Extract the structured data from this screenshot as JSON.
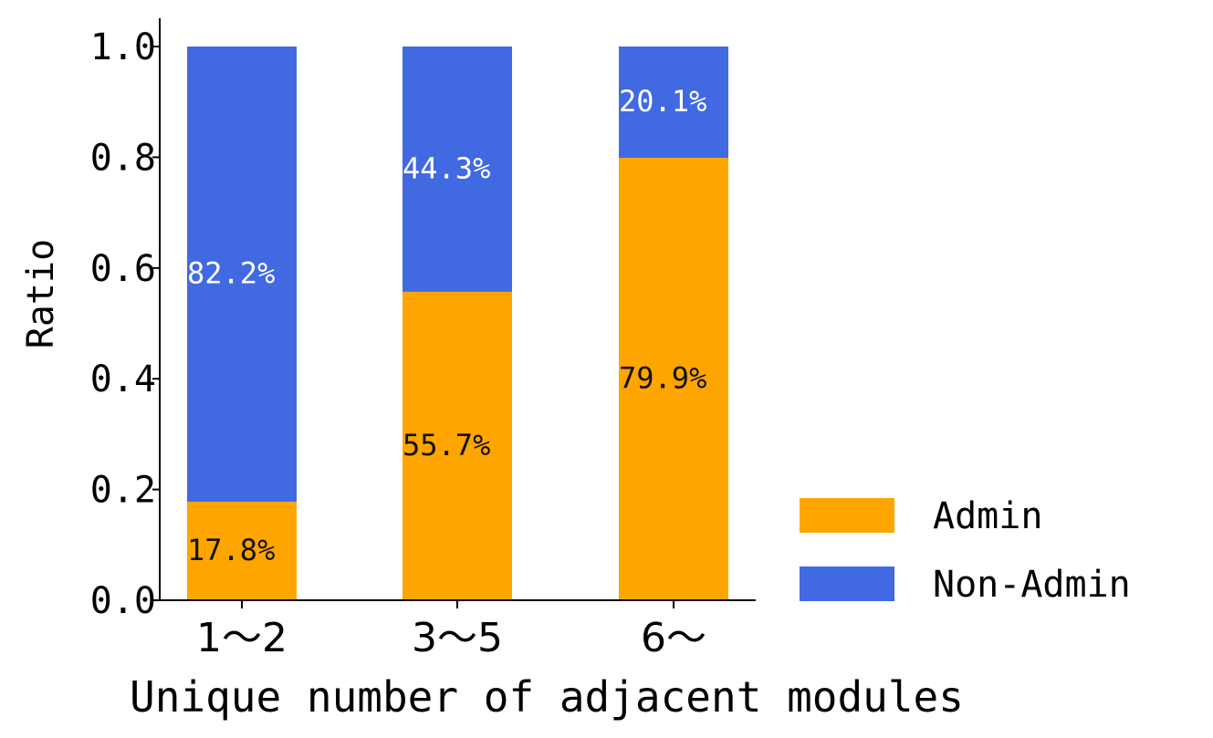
{
  "chart_data": {
    "type": "bar",
    "stacked": true,
    "title": "",
    "xlabel": "Unique number of adjacent modules",
    "ylabel": "Ratio",
    "ylim": [
      0,
      1.0
    ],
    "yticks": [
      "0.0",
      "0.2",
      "0.4",
      "0.6",
      "0.8",
      "1.0"
    ],
    "categories": [
      "1～2",
      "3～5",
      "6～"
    ],
    "series": [
      {
        "name": "Admin",
        "color": "#FFA500",
        "values": [
          0.178,
          0.557,
          0.799
        ],
        "labels": [
          "17.8%",
          "55.7%",
          "79.9%"
        ],
        "label_color": "#111111"
      },
      {
        "name": "Non-Admin",
        "color": "#4169E1",
        "values": [
          0.822,
          0.443,
          0.201
        ],
        "labels": [
          "82.2%",
          "44.3%",
          "20.1%"
        ],
        "label_color": "#ffffff"
      }
    ],
    "legend_position": "bottom-right",
    "grid": false
  }
}
